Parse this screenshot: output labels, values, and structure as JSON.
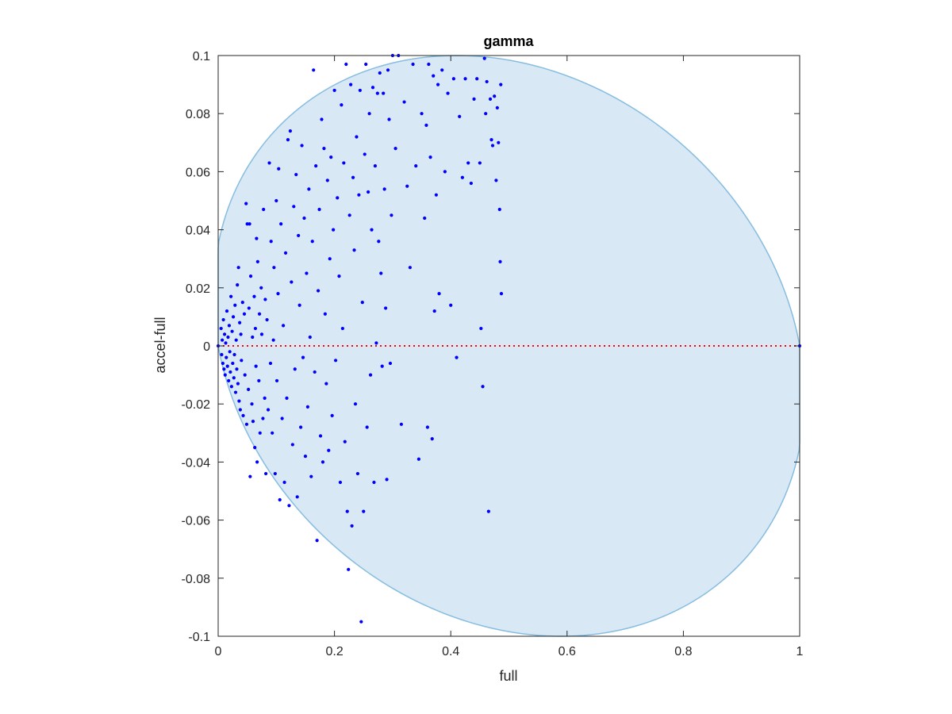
{
  "chart_data": {
    "type": "scatter",
    "title": "gamma",
    "xlabel": "full",
    "ylabel": "accel-full",
    "xlim": [
      0,
      1
    ],
    "ylim": [
      -0.1,
      0.1
    ],
    "x_ticks": [
      "0",
      "0.2",
      "0.4",
      "0.6",
      "0.8",
      "1"
    ],
    "y_ticks": [
      "-0.1",
      "-0.08",
      "-0.06",
      "-0.04",
      "-0.02",
      "0",
      "0.02",
      "0.04",
      "0.06",
      "0.08",
      "0.1"
    ],
    "grid": false,
    "legend": "none",
    "colors": {
      "points": "#0000ff",
      "region_fill": "#d8e8f4",
      "region_edge": "#86bde0",
      "zero_line": "#ff0000",
      "axis": "#262626"
    },
    "region": {
      "shape": "ellipse",
      "center": [
        0.5,
        0
      ],
      "x_radius": 0.5,
      "y_radius": 0.1,
      "tilt_x_per_y": -0.9
    },
    "reference_line": {
      "y": 0,
      "style": "dotted"
    },
    "points": [
      [
        0.0,
        0.0
      ],
      [
        1.0,
        0.0
      ],
      [
        0.005,
        0.006
      ],
      [
        0.006,
        -0.003
      ],
      [
        0.007,
        0.002
      ],
      [
        0.008,
        -0.006
      ],
      [
        0.009,
        0.009
      ],
      [
        0.01,
        -0.008
      ],
      [
        0.011,
        0.004
      ],
      [
        0.012,
        -0.01
      ],
      [
        0.013,
        0.001
      ],
      [
        0.014,
        -0.004
      ],
      [
        0.015,
        0.012
      ],
      [
        0.016,
        -0.007
      ],
      [
        0.017,
        0.003
      ],
      [
        0.018,
        -0.012
      ],
      [
        0.019,
        0.007
      ],
      [
        0.02,
        -0.002
      ],
      [
        0.021,
        -0.009
      ],
      [
        0.022,
        0.017
      ],
      [
        0.023,
        -0.014
      ],
      [
        0.024,
        0.005
      ],
      [
        0.025,
        -0.006
      ],
      [
        0.026,
        0.01
      ],
      [
        0.027,
        -0.011
      ],
      [
        0.028,
        -0.003
      ],
      [
        0.029,
        0.014
      ],
      [
        0.03,
        -0.016
      ],
      [
        0.031,
        0.002
      ],
      [
        0.032,
        -0.008
      ],
      [
        0.033,
        0.021
      ],
      [
        0.034,
        -0.013
      ],
      [
        0.035,
        0.027
      ],
      [
        0.036,
        -0.019
      ],
      [
        0.037,
        0.008
      ],
      [
        0.038,
        -0.022
      ],
      [
        0.039,
        0.004
      ],
      [
        0.04,
        -0.005
      ],
      [
        0.042,
        0.015
      ],
      [
        0.043,
        -0.024
      ],
      [
        0.045,
        0.011
      ],
      [
        0.046,
        -0.01
      ],
      [
        0.048,
        0.049
      ],
      [
        0.049,
        -0.027
      ],
      [
        0.05,
        0.042
      ],
      [
        0.052,
        -0.015
      ],
      [
        0.053,
        0.013
      ],
      [
        0.054,
        0.042
      ],
      [
        0.055,
        -0.045
      ],
      [
        0.056,
        0.024
      ],
      [
        0.058,
        -0.02
      ],
      [
        0.059,
        0.003
      ],
      [
        0.06,
        -0.026
      ],
      [
        0.062,
        0.017
      ],
      [
        0.063,
        -0.035
      ],
      [
        0.064,
        0.006
      ],
      [
        0.065,
        -0.007
      ],
      [
        0.066,
        0.037
      ],
      [
        0.067,
        -0.04
      ],
      [
        0.068,
        0.029
      ],
      [
        0.07,
        -0.012
      ],
      [
        0.071,
        0.011
      ],
      [
        0.072,
        -0.03
      ],
      [
        0.074,
        0.02
      ],
      [
        0.075,
        0.004
      ],
      [
        0.077,
        -0.025
      ],
      [
        0.078,
        0.047
      ],
      [
        0.08,
        -0.018
      ],
      [
        0.081,
        0.016
      ],
      [
        0.082,
        -0.044
      ],
      [
        0.084,
        0.009
      ],
      [
        0.086,
        -0.022
      ],
      [
        0.088,
        0.063
      ],
      [
        0.09,
        -0.006
      ],
      [
        0.091,
        0.036
      ],
      [
        0.093,
        -0.03
      ],
      [
        0.095,
        0.002
      ],
      [
        0.096,
        0.027
      ],
      [
        0.098,
        -0.044
      ],
      [
        0.1,
        0.05
      ],
      [
        0.101,
        -0.012
      ],
      [
        0.103,
        0.018
      ],
      [
        0.104,
        0.061
      ],
      [
        0.106,
        -0.053
      ],
      [
        0.108,
        0.042
      ],
      [
        0.11,
        -0.025
      ],
      [
        0.112,
        0.007
      ],
      [
        0.114,
        -0.047
      ],
      [
        0.116,
        0.032
      ],
      [
        0.118,
        -0.018
      ],
      [
        0.12,
        0.071
      ],
      [
        0.122,
        -0.055
      ],
      [
        0.124,
        0.074
      ],
      [
        0.126,
        0.022
      ],
      [
        0.128,
        -0.034
      ],
      [
        0.13,
        0.048
      ],
      [
        0.132,
        -0.008
      ],
      [
        0.134,
        0.059
      ],
      [
        0.136,
        -0.052
      ],
      [
        0.138,
        0.038
      ],
      [
        0.14,
        0.014
      ],
      [
        0.142,
        -0.028
      ],
      [
        0.144,
        0.069
      ],
      [
        0.146,
        -0.004
      ],
      [
        0.148,
        0.044
      ],
      [
        0.15,
        -0.038
      ],
      [
        0.152,
        0.025
      ],
      [
        0.154,
        -0.021
      ],
      [
        0.156,
        0.054
      ],
      [
        0.158,
        0.003
      ],
      [
        0.16,
        -0.045
      ],
      [
        0.162,
        0.036
      ],
      [
        0.164,
        0.095
      ],
      [
        0.166,
        -0.009
      ],
      [
        0.168,
        0.062
      ],
      [
        0.17,
        -0.067
      ],
      [
        0.172,
        0.019
      ],
      [
        0.174,
        0.047
      ],
      [
        0.176,
        -0.031
      ],
      [
        0.178,
        0.078
      ],
      [
        0.18,
        -0.04
      ],
      [
        0.182,
        0.068
      ],
      [
        0.184,
        0.011
      ],
      [
        0.186,
        -0.013
      ],
      [
        0.188,
        0.057
      ],
      [
        0.19,
        -0.036
      ],
      [
        0.192,
        0.03
      ],
      [
        0.194,
        0.065
      ],
      [
        0.196,
        -0.024
      ],
      [
        0.198,
        0.04
      ],
      [
        0.2,
        0.088
      ],
      [
        0.202,
        -0.005
      ],
      [
        0.205,
        0.051
      ],
      [
        0.208,
        0.024
      ],
      [
        0.21,
        -0.047
      ],
      [
        0.212,
        0.083
      ],
      [
        0.214,
        0.006
      ],
      [
        0.216,
        0.063
      ],
      [
        0.218,
        -0.033
      ],
      [
        0.22,
        0.097
      ],
      [
        0.222,
        -0.057
      ],
      [
        0.224,
        -0.077
      ],
      [
        0.226,
        0.045
      ],
      [
        0.228,
        0.09
      ],
      [
        0.23,
        -0.062
      ],
      [
        0.232,
        0.058
      ],
      [
        0.234,
        0.033
      ],
      [
        0.236,
        -0.02
      ],
      [
        0.238,
        0.072
      ],
      [
        0.24,
        -0.044
      ],
      [
        0.242,
        0.052
      ],
      [
        0.244,
        0.088
      ],
      [
        0.246,
        -0.095
      ],
      [
        0.248,
        0.015
      ],
      [
        0.25,
        -0.057
      ],
      [
        0.252,
        0.066
      ],
      [
        0.254,
        0.097
      ],
      [
        0.256,
        -0.028
      ],
      [
        0.258,
        0.053
      ],
      [
        0.26,
        0.08
      ],
      [
        0.262,
        -0.01
      ],
      [
        0.264,
        0.04
      ],
      [
        0.266,
        0.089
      ],
      [
        0.268,
        -0.047
      ],
      [
        0.27,
        0.062
      ],
      [
        0.272,
        0.001
      ],
      [
        0.274,
        0.087
      ],
      [
        0.276,
        0.036
      ],
      [
        0.278,
        0.094
      ],
      [
        0.28,
        0.025
      ],
      [
        0.282,
        -0.007
      ],
      [
        0.284,
        0.087
      ],
      [
        0.286,
        0.054
      ],
      [
        0.288,
        0.013
      ],
      [
        0.29,
        -0.046
      ],
      [
        0.292,
        0.095
      ],
      [
        0.294,
        0.078
      ],
      [
        0.296,
        -0.006
      ],
      [
        0.298,
        0.045
      ],
      [
        0.3,
        0.1
      ],
      [
        0.305,
        0.068
      ],
      [
        0.31,
        0.1
      ],
      [
        0.315,
        -0.027
      ],
      [
        0.32,
        0.084
      ],
      [
        0.325,
        0.055
      ],
      [
        0.33,
        0.027
      ],
      [
        0.335,
        0.097
      ],
      [
        0.34,
        0.062
      ],
      [
        0.345,
        -0.039
      ],
      [
        0.35,
        0.08
      ],
      [
        0.355,
        0.044
      ],
      [
        0.358,
        0.076
      ],
      [
        0.36,
        -0.028
      ],
      [
        0.362,
        0.097
      ],
      [
        0.365,
        0.065
      ],
      [
        0.368,
        -0.032
      ],
      [
        0.37,
        0.093
      ],
      [
        0.372,
        0.012
      ],
      [
        0.375,
        0.052
      ],
      [
        0.378,
        0.09
      ],
      [
        0.38,
        0.018
      ],
      [
        0.385,
        0.095
      ],
      [
        0.39,
        0.06
      ],
      [
        0.395,
        0.087
      ],
      [
        0.4,
        0.014
      ],
      [
        0.405,
        0.092
      ],
      [
        0.41,
        -0.004
      ],
      [
        0.415,
        0.079
      ],
      [
        0.42,
        0.058
      ],
      [
        0.425,
        0.092
      ],
      [
        0.43,
        0.063
      ],
      [
        0.435,
        0.056
      ],
      [
        0.44,
        0.085
      ],
      [
        0.445,
        0.092
      ],
      [
        0.45,
        0.063
      ],
      [
        0.452,
        0.006
      ],
      [
        0.455,
        -0.014
      ],
      [
        0.458,
        0.099
      ],
      [
        0.46,
        0.08
      ],
      [
        0.462,
        0.091
      ],
      [
        0.465,
        -0.057
      ],
      [
        0.468,
        0.085
      ],
      [
        0.47,
        0.071
      ],
      [
        0.472,
        0.069
      ],
      [
        0.475,
        0.086
      ],
      [
        0.478,
        0.057
      ],
      [
        0.48,
        0.082
      ],
      [
        0.482,
        0.07
      ],
      [
        0.484,
        0.047
      ],
      [
        0.485,
        0.029
      ],
      [
        0.486,
        0.09
      ],
      [
        0.487,
        0.018
      ]
    ]
  }
}
